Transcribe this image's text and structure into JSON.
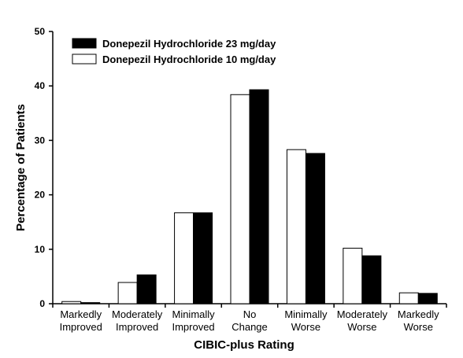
{
  "chart_data": {
    "type": "bar",
    "title": "",
    "xlabel": "CIBIC-plus Rating",
    "ylabel": "Percentage of Patients",
    "ylim": [
      0,
      50
    ],
    "yticks": [
      0,
      10,
      20,
      30,
      40,
      50
    ],
    "grid": false,
    "legend_position": "top-left",
    "categories": [
      [
        "Markedly",
        "Improved"
      ],
      [
        "Moderately",
        "Improved"
      ],
      [
        "Minimally",
        "Improved"
      ],
      [
        "No",
        "Change"
      ],
      [
        "Minimally",
        "Worse"
      ],
      [
        "Moderately",
        "Worse"
      ],
      [
        "Markedly",
        "Worse"
      ]
    ],
    "series": [
      {
        "name": "Donepezil Hydrochloride 10 mg/day",
        "color": "#ffffff",
        "values": [
          0.4,
          3.9,
          16.7,
          38.4,
          28.3,
          10.2,
          2.0
        ]
      },
      {
        "name": "Donepezil Hydrochloride 23 mg/day",
        "color": "#000000",
        "values": [
          0.2,
          5.3,
          16.7,
          39.3,
          27.6,
          8.8,
          1.9
        ]
      }
    ],
    "legend_order": [
      1,
      0
    ]
  }
}
